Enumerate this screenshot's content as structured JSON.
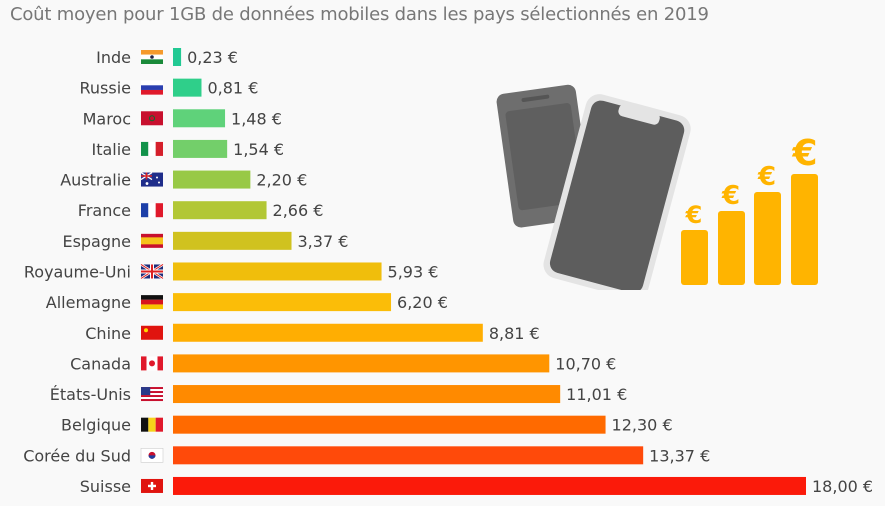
{
  "chart_data": {
    "type": "bar",
    "orientation": "horizontal",
    "title": "Coût moyen pour 1GB de données mobiles dans les pays sélectionnés en 2019",
    "xlabel": "",
    "ylabel": "",
    "xlim": [
      0,
      18
    ],
    "unit": "€",
    "categories": [
      "Inde",
      "Russie",
      "Maroc",
      "Italie",
      "Australie",
      "France",
      "Espagne",
      "Royaume-Uni",
      "Allemagne",
      "Chine",
      "Canada",
      "États-Unis",
      "Belgique",
      "Corée du Sud",
      "Suisse"
    ],
    "values": [
      0.23,
      0.81,
      1.48,
      1.54,
      2.2,
      2.66,
      3.37,
      5.93,
      6.2,
      8.81,
      10.7,
      11.01,
      12.3,
      13.37,
      18.0
    ],
    "value_labels": [
      "0,23 €",
      "0,81 €",
      "1,48 €",
      "1,54 €",
      "2,20 €",
      "2,66 €",
      "3,37 €",
      "5,93 €",
      "6,20 €",
      "8,81 €",
      "10,70 €",
      "11,01 €",
      "12,30 €",
      "13,37 €",
      "18,00 €"
    ],
    "flags": [
      "in",
      "ru",
      "ma",
      "it",
      "au",
      "fr",
      "es",
      "gb",
      "de",
      "cn",
      "ca",
      "us",
      "be",
      "kr",
      "ch"
    ],
    "colors": [
      "#22c993",
      "#2fcf8a",
      "#5fd27a",
      "#73cf6a",
      "#98c946",
      "#b2c735",
      "#d0c21f",
      "#f0be0c",
      "#fbbd08",
      "#ffae02",
      "#ff9500",
      "#ff8a00",
      "#ff6a00",
      "#ff4a0a",
      "#fb1a0a"
    ],
    "grid": false,
    "legend": "none"
  },
  "illustration": {
    "icons": [
      "smartphone-icon",
      "euro-bars-icon"
    ],
    "accent": "#ffb400"
  }
}
